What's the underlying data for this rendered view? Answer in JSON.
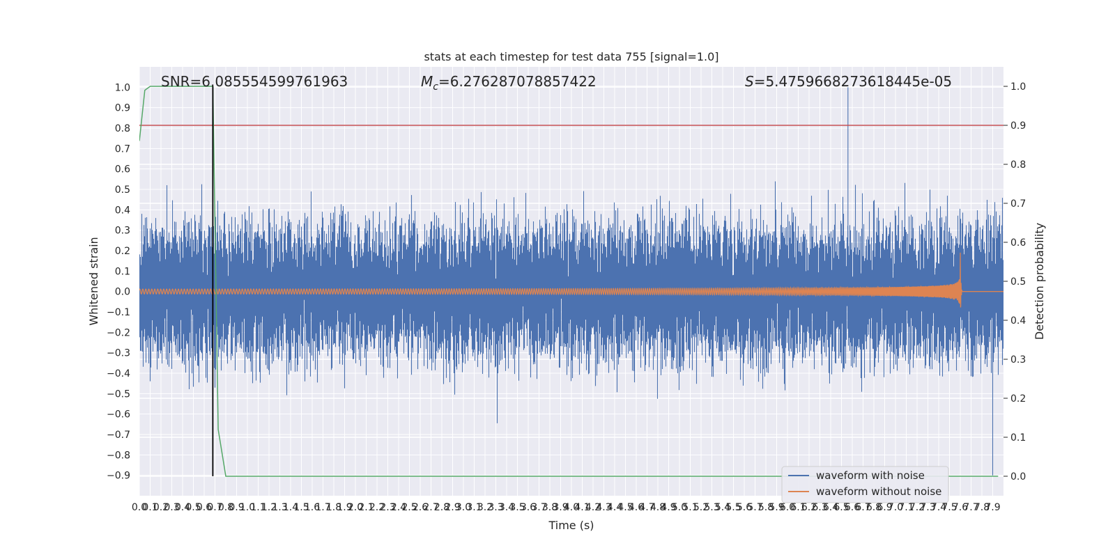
{
  "chart_data": {
    "type": "line",
    "title": "stats at each timestep for test data 755 [signal=1.0]",
    "xlabel": "Time (s)",
    "ylabel": "Whitened strain",
    "y2label": "Detection probability",
    "xlim": [
      0.0,
      8.0
    ],
    "ylim": [
      -1.0,
      1.1
    ],
    "y2lim": [
      -0.05,
      1.05
    ],
    "x_ticks": [
      "0.0",
      "0.1",
      "0.2",
      "0.3",
      "0.4",
      "0.5",
      "0.6",
      "0.7",
      "0.8",
      "0.9",
      "1.0",
      "1.1",
      "1.2",
      "1.3",
      "1.4",
      "1.5",
      "1.6",
      "1.7",
      "1.8",
      "1.9",
      "2.0",
      "2.1",
      "2.2",
      "2.3",
      "2.4",
      "2.5",
      "2.6",
      "2.7",
      "2.8",
      "2.9",
      "3.0",
      "3.1",
      "3.2",
      "3.3",
      "3.4",
      "3.5",
      "3.6",
      "3.7",
      "3.8",
      "3.9",
      "4.0",
      "4.1",
      "4.2",
      "4.3",
      "4.4",
      "4.5",
      "4.6",
      "4.7",
      "4.8",
      "4.9",
      "5.0",
      "5.1",
      "5.2",
      "5.3",
      "5.4",
      "5.5",
      "5.6",
      "5.7",
      "5.8",
      "5.9",
      "6.0",
      "6.1",
      "6.2",
      "6.3",
      "6.4",
      "6.5",
      "6.6",
      "6.7",
      "6.8",
      "6.9",
      "7.0",
      "7.1",
      "7.2",
      "7.3",
      "7.4",
      "7.5",
      "7.6",
      "7.7",
      "7.8",
      "7.9"
    ],
    "y_ticks": [
      "1.0",
      "0.9",
      "0.8",
      "0.7",
      "0.6",
      "0.5",
      "0.4",
      "0.3",
      "0.2",
      "0.1",
      "0.0",
      "−0.1",
      "−0.2",
      "−0.3",
      "−0.4",
      "−0.5",
      "−0.6",
      "−0.7",
      "−0.8",
      "−0.9"
    ],
    "y2_ticks": [
      "1.0",
      "0.9",
      "0.8",
      "0.7",
      "0.6",
      "0.5",
      "0.4",
      "0.3",
      "0.2",
      "0.1",
      "0.0"
    ],
    "annotations": {
      "snr": "SNR=6.085554599761963",
      "mc_symbol": "M",
      "mc_sub": "c",
      "mc_value": "=6.276287078857422",
      "s_symbol": "S",
      "s_value": "=5.4759668273618445e-05"
    },
    "series": [
      {
        "name": "waveform with noise",
        "color": "#4c72b0",
        "kind": "noise",
        "amplitude_typical": 0.35,
        "extreme_max": 1.0,
        "extreme_min": -0.9,
        "x_range": [
          0.0,
          8.0
        ]
      },
      {
        "name": "waveform without noise",
        "color": "#dd8452",
        "kind": "chirp",
        "merger_time": 7.6,
        "peak_amplitude": 0.19,
        "start_amplitude": 0.012,
        "x_range": [
          0.0,
          8.0
        ]
      },
      {
        "color": "#55a868",
        "axis": "y2",
        "points": [
          [
            0.0,
            0.86
          ],
          [
            0.05,
            0.99
          ],
          [
            0.1,
            1.0
          ],
          [
            0.68,
            1.0
          ],
          [
            0.73,
            0.12
          ],
          [
            0.8,
            0.0
          ],
          [
            7.95,
            0.0
          ]
        ]
      }
    ],
    "threshold": {
      "color": "#c44e52",
      "y2": 0.9
    },
    "marker_line": {
      "color": "#000000",
      "x": 0.68
    },
    "colors": {
      "background": "#eaeaf2",
      "grid": "#ffffff"
    },
    "grid": true,
    "legend_placement": "lower-right"
  }
}
